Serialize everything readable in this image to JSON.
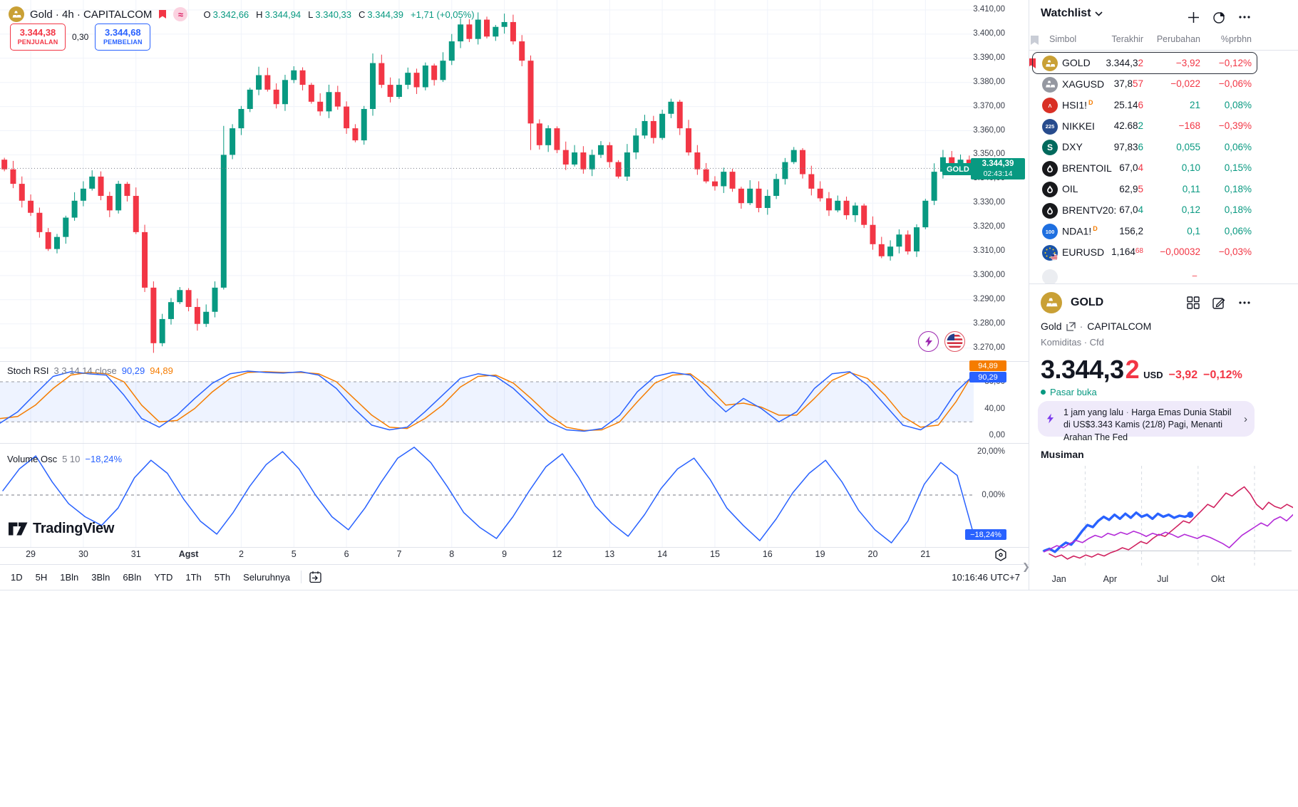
{
  "header": {
    "title": "Gold · 4h · CAPITALCOM",
    "ohlc": [
      {
        "k": "O",
        "v": "3.342,66"
      },
      {
        "k": "H",
        "v": "3.344,94"
      },
      {
        "k": "L",
        "v": "3.340,33"
      },
      {
        "k": "C",
        "v": "3.344,39"
      }
    ],
    "change": "+1,71 (+0,05%)",
    "sell": {
      "price": "3.344,38",
      "label": "PENJUALAN"
    },
    "spread": "0,30",
    "buy": {
      "price": "3.344,68",
      "label": "PEMBELIAN"
    }
  },
  "price_scale": {
    "labels": [
      "3.410,00",
      "3.400,00",
      "3.390,00",
      "3.380,00",
      "3.370,00",
      "3.360,00",
      "3.350,00",
      "3.340,00",
      "3.330,00",
      "3.320,00",
      "3.310,00",
      "3.300,00",
      "3.290,00",
      "3.280,00",
      "3.270,00"
    ],
    "tag": {
      "symbol": "GOLD",
      "price": "3.344,39",
      "countdown": "02:43:14"
    }
  },
  "stoch": {
    "title": "Stoch RSI",
    "params": "3 3 14 14 close",
    "k_label": "90,29",
    "d_label": "94,89",
    "axis": [
      {
        "t": "80,00",
        "v": 80
      },
      {
        "t": "40,00",
        "v": 40
      },
      {
        "t": "0,00",
        "v": 0
      }
    ]
  },
  "vol": {
    "title": "Volume Osc",
    "params": "5 10",
    "value": "−18,24%",
    "badge": "−18,24%",
    "axis": [
      {
        "t": "20,00%",
        "v": 20
      },
      {
        "t": "0,00%",
        "v": 0
      }
    ]
  },
  "timeline": {
    "bold_label": "Agst"
  },
  "toolbar": {
    "ranges": [
      "1D",
      "5H",
      "1Bln",
      "3Bln",
      "6Bln",
      "YTD",
      "1Th",
      "5Th",
      "Seluruhnya"
    ],
    "time": "10:16:46 UTC+7"
  },
  "logo": {
    "text": "TradingView"
  },
  "watchlist": {
    "title": "Watchlist",
    "columns": {
      "symbol": "Simbol",
      "last": "Terakhir",
      "change": "Perubahan",
      "pct": "%prbhn"
    },
    "rows": [
      {
        "symbol": "GOLD",
        "icon": {
          "bg": "#c9a035",
          "glyph": "ingots"
        },
        "selected": true,
        "flagged": true,
        "last": {
          "main": "3.344,3",
          "tick": "2",
          "dir": "down"
        },
        "change": {
          "text": "−3,92",
          "dir": "down"
        },
        "pct": {
          "text": "−0,12%",
          "dir": "down"
        }
      },
      {
        "symbol": "XAGUSD",
        "icon": {
          "bg": "#9598a1",
          "glyph": "ingots"
        },
        "last": {
          "main": "37,8",
          "tick": "57",
          "dir": "down"
        },
        "change": {
          "text": "−0,022",
          "dir": "down"
        },
        "pct": {
          "text": "−0,06%",
          "dir": "down"
        }
      },
      {
        "symbol": "HSI1!",
        "sup": "D",
        "icon": {
          "bg": "#d93025",
          "glyph": "hsi"
        },
        "last": {
          "main": "25.14",
          "tick": "6",
          "dir": "down"
        },
        "change": {
          "text": "21",
          "dir": "up"
        },
        "pct": {
          "text": "0,08%",
          "dir": "up"
        }
      },
      {
        "symbol": "NIKKEI",
        "icon": {
          "bg": "#274b8d",
          "glyph": "225"
        },
        "last": {
          "main": "42.68",
          "tick": "2",
          "dir": "up"
        },
        "change": {
          "text": "−168",
          "dir": "down"
        },
        "pct": {
          "text": "−0,39%",
          "dir": "down"
        }
      },
      {
        "symbol": "DXY",
        "icon": {
          "bg": "#00695c",
          "glyph": "S"
        },
        "last": {
          "main": "97,83",
          "tick": "6",
          "dir": "up"
        },
        "change": {
          "text": "0,055",
          "dir": "up"
        },
        "pct": {
          "text": "0,06%",
          "dir": "up"
        }
      },
      {
        "symbol": "BRENTOIL",
        "icon": {
          "bg": "#17181b",
          "glyph": "drop"
        },
        "last": {
          "main": "67,0",
          "tick": "4",
          "dir": "down"
        },
        "change": {
          "text": "0,10",
          "dir": "up"
        },
        "pct": {
          "text": "0,15%",
          "dir": "up"
        }
      },
      {
        "symbol": "OIL",
        "icon": {
          "bg": "#17181b",
          "glyph": "drop"
        },
        "last": {
          "main": "62,9",
          "tick": "5",
          "dir": "down"
        },
        "change": {
          "text": "0,11",
          "dir": "up"
        },
        "pct": {
          "text": "0,18%",
          "dir": "up"
        }
      },
      {
        "symbol": "BRENTV20:",
        "icon": {
          "bg": "#17181b",
          "glyph": "drop"
        },
        "last": {
          "main": "67,0",
          "tick": "4",
          "dir": "up"
        },
        "change": {
          "text": "0,12",
          "dir": "up"
        },
        "pct": {
          "text": "0,18%",
          "dir": "up"
        }
      },
      {
        "symbol": "NDA1!",
        "sup": "D",
        "icon": {
          "bg": "#1e6fe0",
          "glyph": "100"
        },
        "last": {
          "main": "156,2",
          "tick": "",
          "dir": "neut"
        },
        "change": {
          "text": "0,1",
          "dir": "up"
        },
        "pct": {
          "text": "0,06%",
          "dir": "up"
        }
      },
      {
        "symbol": "EURUSD",
        "icon": {
          "bg": "#1b53a8",
          "glyph": "eu"
        },
        "last": {
          "main": "1,164",
          "tick": "68",
          "dir": "down",
          "sup": true
        },
        "change": {
          "text": "−0,00032",
          "dir": "down"
        },
        "pct": {
          "text": "−0,03%",
          "dir": "down"
        }
      }
    ]
  },
  "detail": {
    "symbol": "GOLD",
    "name": "Gold",
    "exchange": "CAPITALCOM",
    "dot": "·",
    "meta": "Komiditas · Cfd",
    "price_main": "3.344,3",
    "price_tick": "2",
    "currency": "USD",
    "change": "−3,92",
    "pct": "−0,12%",
    "status": "Pasar buka"
  },
  "news": {
    "time": "1 jam yang lalu",
    "separator": "·",
    "text": "Harga Emas Dunia Stabil di US$3.343 Kamis (21/8) Pagi, Menanti Arahan The Fed"
  },
  "seasonal": {
    "title": "Musiman",
    "months": [
      "Jan",
      "Apr",
      "Jul",
      "Okt"
    ]
  },
  "colors": {
    "up": "#089981",
    "down": "#f23645",
    "accent_blue": "#2962ff",
    "orange": "#f57c00",
    "grid": "#f0f3fa",
    "dashed": "#9598a1",
    "crimson": "#d0215f",
    "magenta": "#b32ad8",
    "purple": "#7c3aed"
  },
  "chart_data": [
    {
      "id": "main",
      "type": "candlestick",
      "title": "Gold 4h CAPITALCOM",
      "ylim": [
        3264,
        3412
      ],
      "price_step_per_gridline": 10,
      "first_open": 3348,
      "closes": [
        3344,
        3338,
        3331,
        3326,
        3318,
        3311,
        3316,
        3324,
        3331,
        3336,
        3341,
        3333,
        3327,
        3338,
        3333,
        3318,
        3295,
        3272,
        3282,
        3289,
        3294,
        3287,
        3280,
        3285,
        3295,
        3350,
        3361,
        3369,
        3377,
        3383,
        3377,
        3371,
        3381,
        3385,
        3379,
        3372,
        3368,
        3376,
        3370,
        3361,
        3356,
        3369,
        3388,
        3379,
        3374,
        3379,
        3384,
        3378,
        3387,
        3381,
        3389,
        3397,
        3404,
        3398,
        3406,
        3399,
        3403,
        3405,
        3397,
        3389,
        3363,
        3354,
        3361,
        3352,
        3346,
        3351,
        3344,
        3350,
        3354,
        3347,
        3341,
        3351,
        3358,
        3364,
        3357,
        3367,
        3372,
        3361,
        3351,
        3344,
        3339,
        3337,
        3343,
        3336,
        3330,
        3336,
        3328,
        3333,
        3340,
        3347,
        3352,
        3342,
        3336,
        3332,
        3327,
        3331,
        3325,
        3329,
        3321,
        3313,
        3308,
        3312,
        3317,
        3310,
        3320,
        3331,
        3343,
        3349,
        3344,
        3348,
        3344.4
      ],
      "wick_overrides": {
        "17": {
          "low": 3268
        },
        "25": {
          "high": 3362
        },
        "42": {
          "high": 3392
        },
        "54": {
          "high": 3409
        },
        "60": {
          "low": 3352
        }
      },
      "last_price": 3344.39,
      "day_ticks": {
        "indices": [
          3,
          9,
          15,
          21,
          27,
          33,
          39,
          45,
          51,
          57,
          63,
          69,
          75,
          81,
          87,
          93,
          99,
          105
        ],
        "labels": [
          "29",
          "30",
          "31",
          "Agst",
          "2",
          "5",
          "6",
          "7",
          "8",
          "9",
          "12",
          "13",
          "14",
          "15",
          "16",
          "19",
          "20",
          "21"
        ]
      }
    },
    {
      "id": "stoch_rsi",
      "type": "line",
      "title": "Stoch RSI 3 3 14 14 close",
      "ylim": [
        0,
        100
      ],
      "bands": [
        80,
        20
      ],
      "k_last": 90.29,
      "d_last": 94.89,
      "k_values": [
        18,
        35,
        62,
        88,
        95,
        92,
        90,
        60,
        25,
        12,
        30,
        55,
        78,
        92,
        96,
        94,
        93,
        95,
        90,
        70,
        40,
        15,
        8,
        12,
        35,
        60,
        85,
        92,
        88,
        70,
        45,
        20,
        8,
        6,
        10,
        30,
        65,
        88,
        94,
        90,
        60,
        35,
        55,
        40,
        20,
        35,
        70,
        92,
        95,
        75,
        45,
        15,
        8,
        25,
        65,
        90
      ],
      "d_values": [
        25,
        28,
        45,
        70,
        90,
        94,
        92,
        80,
        45,
        20,
        22,
        40,
        65,
        85,
        94,
        95,
        94,
        94,
        92,
        80,
        55,
        30,
        12,
        10,
        25,
        45,
        72,
        88,
        90,
        78,
        55,
        30,
        12,
        7,
        8,
        20,
        50,
        78,
        90,
        92,
        72,
        45,
        48,
        42,
        30,
        30,
        55,
        82,
        94,
        85,
        60,
        28,
        12,
        15,
        50,
        94
      ]
    },
    {
      "id": "volume_osc",
      "type": "line",
      "title": "Volume Osc 5 10",
      "ylim": [
        -28,
        25
      ],
      "last": -18.24,
      "values": [
        2,
        12,
        18,
        6,
        -4,
        -10,
        -14,
        -6,
        8,
        16,
        10,
        -2,
        -12,
        -18,
        -8,
        4,
        14,
        20,
        12,
        0,
        -10,
        -16,
        -6,
        6,
        17,
        22,
        15,
        4,
        -8,
        -15,
        -20,
        -10,
        2,
        13,
        19,
        8,
        -5,
        -13,
        -19,
        -9,
        3,
        12,
        17,
        7,
        -6,
        -14,
        -21,
        -11,
        1,
        10,
        16,
        6,
        -7,
        -16,
        -22,
        -12,
        5,
        15,
        9,
        -18.24
      ]
    },
    {
      "id": "seasonal",
      "type": "line",
      "title": "Musiman",
      "x_months": [
        "Jan",
        "Apr",
        "Jul",
        "Okt"
      ],
      "baseline_value": 17,
      "series": [
        {
          "name": "tahun-ini",
          "color": "#2962ff",
          "width": 3.4,
          "end_dot": true,
          "span": [
            0.03,
            0.6
          ],
          "values": [
            17,
            19,
            16,
            21,
            25,
            23,
            29,
            36,
            42,
            40,
            46,
            50,
            47,
            52,
            48,
            53,
            49,
            54,
            50,
            52,
            48,
            53,
            50,
            52,
            49,
            51,
            50,
            52
          ]
        },
        {
          "name": "tahun-lalu",
          "color": "#d0215f",
          "width": 1.6,
          "span": [
            0.05,
            1.0
          ],
          "values": [
            14,
            11,
            13,
            9,
            12,
            10,
            13,
            11,
            14,
            12,
            15,
            17,
            20,
            18,
            22,
            26,
            24,
            29,
            33,
            31,
            36,
            41,
            46,
            44,
            50,
            56,
            62,
            59,
            66,
            73,
            70,
            75,
            79,
            72,
            62,
            57,
            64,
            60,
            58,
            62,
            59
          ]
        },
        {
          "name": "rata-rata",
          "color": "#b32ad8",
          "width": 1.6,
          "span": [
            0.03,
            1.0
          ],
          "values": [
            16,
            19,
            22,
            20,
            24,
            27,
            25,
            29,
            32,
            30,
            34,
            32,
            35,
            33,
            36,
            34,
            31,
            34,
            32,
            35,
            33,
            30,
            33,
            31,
            29,
            32,
            30,
            27,
            24,
            20,
            26,
            32,
            36,
            40,
            44,
            41,
            47,
            50,
            46,
            52
          ]
        }
      ]
    }
  ]
}
